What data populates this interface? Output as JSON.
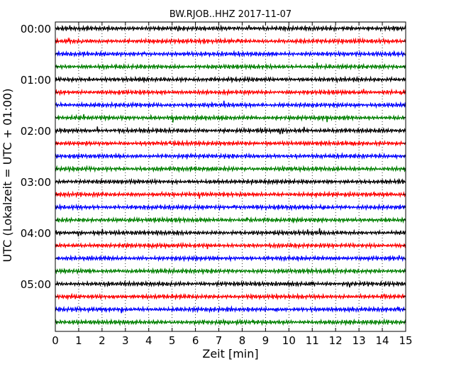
{
  "chart_data": {
    "type": "line",
    "title": "BW.RJOB..HHZ 2017-11-07",
    "xlabel": "Zeit  [min]",
    "ylabel": "UTC (Lokalzeit = UTC + 01:00)",
    "xlim": [
      0,
      15
    ],
    "x_ticks": [
      "0",
      "1",
      "2",
      "3",
      "4",
      "5",
      "6",
      "7",
      "8",
      "9",
      "10",
      "11",
      "12",
      "13",
      "14",
      "15"
    ],
    "y_tick_labels": [
      "00:00",
      "01:00",
      "02:00",
      "03:00",
      "04:00",
      "05:00"
    ],
    "trace_interval_minutes": 15,
    "trace_count": 24,
    "trace_colors": [
      "#000000",
      "#ff0000",
      "#0000ff",
      "#008000"
    ],
    "grid": "vertical dotted",
    "legend": "none"
  }
}
